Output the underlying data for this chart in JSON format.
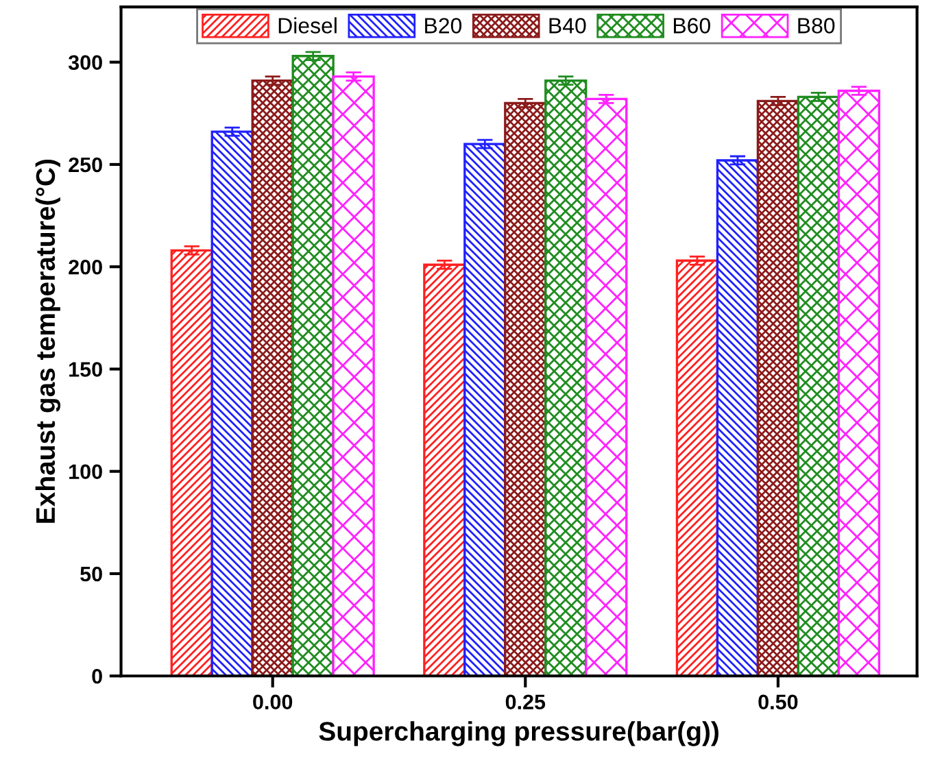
{
  "chart_data": {
    "type": "bar",
    "xlabel": "Supercharging pressure(bar(g))",
    "ylabel": "Exhaust gas temperature(°C)",
    "categories": [
      "0.00",
      "0.25",
      "0.50"
    ],
    "series": [
      {
        "name": "Diesel",
        "color": "#ff2020",
        "values": [
          208,
          201,
          203
        ],
        "errors": [
          2,
          2,
          2
        ]
      },
      {
        "name": "B20",
        "color": "#2020ff",
        "values": [
          266,
          260,
          252
        ],
        "errors": [
          2,
          2,
          2
        ]
      },
      {
        "name": "B40",
        "color": "#8b1a1a",
        "values": [
          291,
          280,
          281
        ],
        "errors": [
          2,
          2,
          2
        ]
      },
      {
        "name": "B60",
        "color": "#1f8c1f",
        "values": [
          303,
          291,
          283
        ],
        "errors": [
          2,
          2,
          2
        ]
      },
      {
        "name": "B80",
        "color": "#ff20ff",
        "values": [
          293,
          282,
          286
        ],
        "errors": [
          2,
          2,
          2
        ]
      }
    ],
    "ylim": [
      0,
      327
    ],
    "yticks": [
      0,
      50,
      100,
      150,
      200,
      250,
      300
    ],
    "legend": "top",
    "grid": false
  }
}
